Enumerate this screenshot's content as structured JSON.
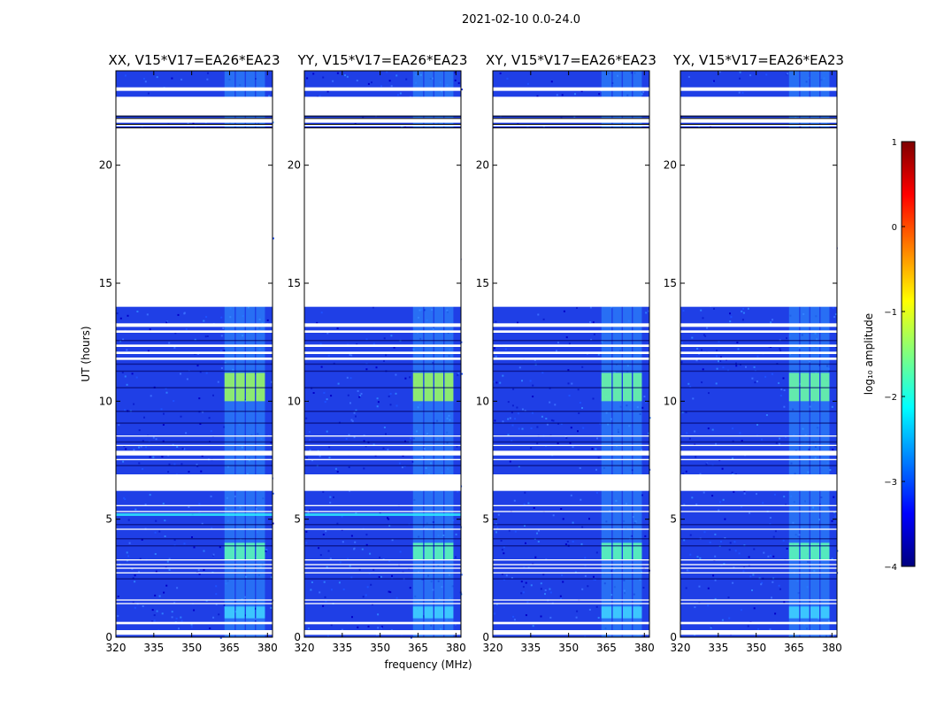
{
  "figure": {
    "suptitle": "2021-02-10 0.0-24.0",
    "ylabel": "UT (hours)",
    "xlabel": "frequency (MHz)"
  },
  "chart_data": {
    "type": "heatmap",
    "xlim": [
      320,
      382
    ],
    "ylim": [
      0,
      24
    ],
    "xticks": [
      {
        "value": 320,
        "label": "320"
      },
      {
        "value": 335,
        "label": "335"
      },
      {
        "value": 350,
        "label": "350"
      },
      {
        "value": 365,
        "label": "365"
      },
      {
        "value": 380,
        "label": "380"
      }
    ],
    "yticks": [
      {
        "value": 0,
        "label": "0"
      },
      {
        "value": 5,
        "label": "5"
      },
      {
        "value": 10,
        "label": "10"
      },
      {
        "value": 15,
        "label": "15"
      },
      {
        "value": 20,
        "label": "20"
      }
    ],
    "panels": [
      {
        "title": "XX, V15*V17=EA26*EA23"
      },
      {
        "title": "YY, V15*V17=EA26*EA23"
      },
      {
        "title": "XY, V15*V17=EA26*EA23"
      },
      {
        "title": "YX, V15*V17=EA26*EA23"
      }
    ],
    "colorbar": {
      "label": "log₁₀ amplitude",
      "range": [
        -4,
        1
      ],
      "ticks": [
        {
          "value": 1,
          "label": "1"
        },
        {
          "value": 0,
          "label": "0"
        },
        {
          "value": -1,
          "label": "−1"
        },
        {
          "value": -2,
          "label": "−2"
        },
        {
          "value": -3,
          "label": "−3"
        },
        {
          "value": -4,
          "label": "−4"
        }
      ],
      "colors": [
        "#00007f",
        "#0000ff",
        "#007fff",
        "#00ffff",
        "#7fff7f",
        "#ffff00",
        "#ff7f00",
        "#ff0000",
        "#7f0000"
      ]
    },
    "flagged_hours": [
      [
        0.1,
        0.3
      ],
      [
        0.55,
        0.65
      ],
      [
        1.4,
        1.45
      ],
      [
        1.55,
        1.6
      ],
      [
        2.7,
        2.75
      ],
      [
        2.9,
        2.95
      ],
      [
        3.05,
        3.1
      ],
      [
        3.25,
        3.3
      ],
      [
        4.55,
        4.6
      ],
      [
        5.3,
        5.35
      ],
      [
        5.55,
        5.6
      ],
      [
        6.2,
        6.9
      ],
      [
        7.5,
        7.55
      ],
      [
        7.7,
        7.9
      ],
      [
        8.1,
        8.15
      ],
      [
        8.5,
        8.55
      ],
      [
        11.75,
        11.85
      ],
      [
        12.0,
        12.1
      ],
      [
        12.3,
        12.4
      ],
      [
        12.9,
        13.0
      ],
      [
        13.15,
        13.3
      ],
      [
        14.0,
        21.6
      ],
      [
        21.65,
        21.75
      ],
      [
        21.8,
        22.0
      ],
      [
        22.1,
        22.9
      ],
      [
        23.15,
        23.3
      ]
    ]
  }
}
